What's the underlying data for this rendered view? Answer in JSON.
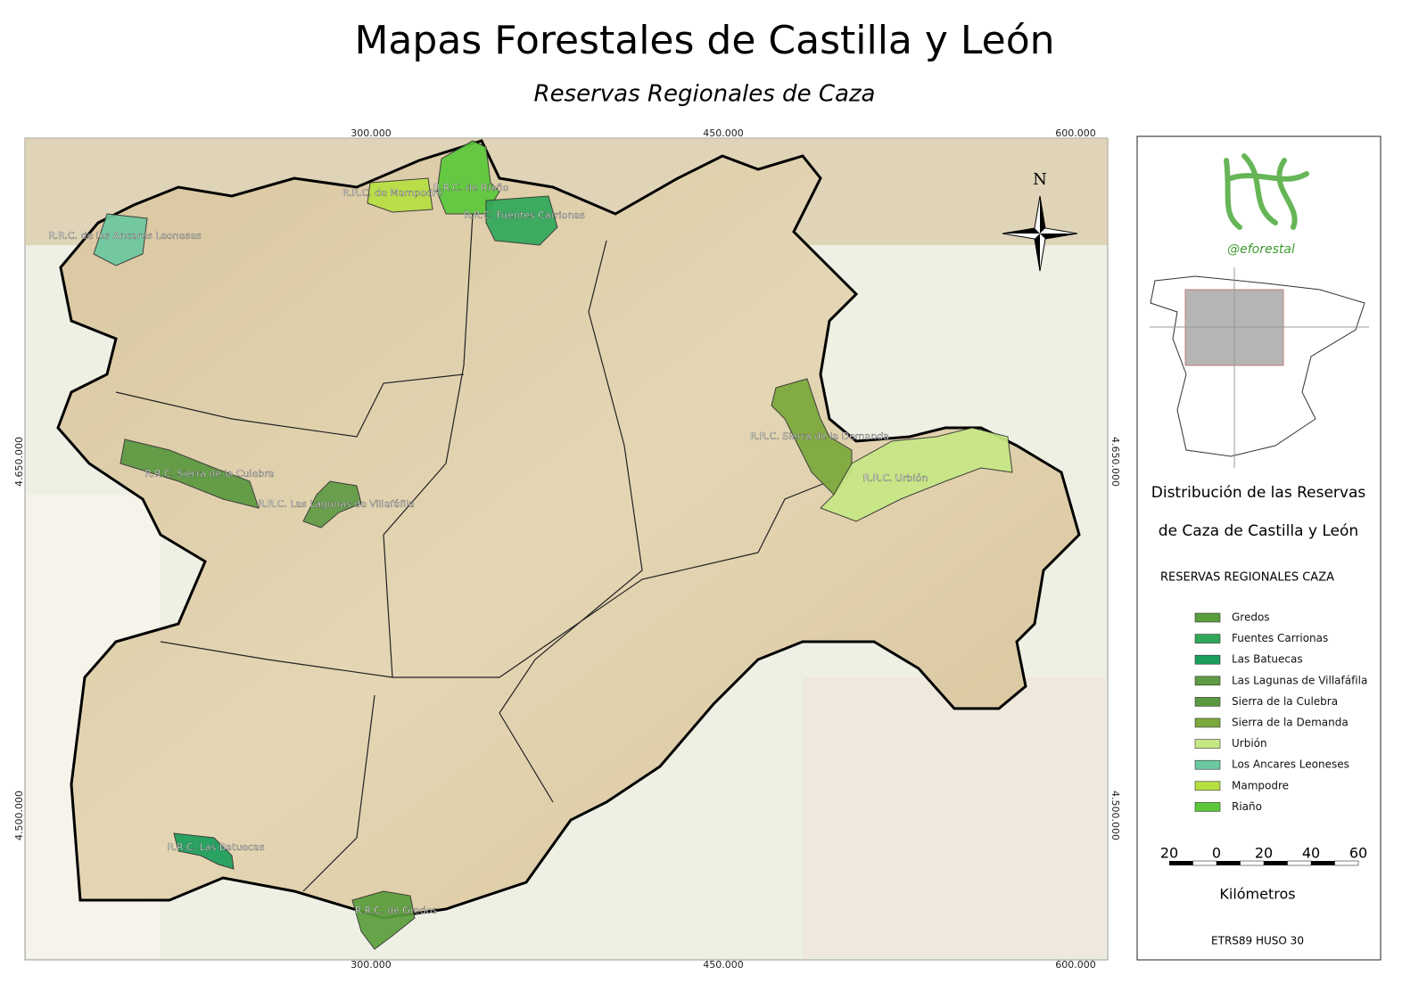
{
  "header": {
    "title": "Mapas Forestales de Castilla y León",
    "subtitle": "Reservas Regionales de Caza"
  },
  "map": {
    "coordinates": {
      "top": [
        "300.000",
        "450.000",
        "600.000"
      ],
      "bottom": [
        "300.000",
        "450.000",
        "600.000"
      ],
      "left": [
        "4.650.000",
        "4.500.000"
      ],
      "right": [
        "4.650.000",
        "4.500.000"
      ]
    },
    "labels": [
      "R.R.C. de Mampodre",
      "R.R.C. de Riaño",
      "R.R.C. Fuentes Carrionas",
      "R.R.C. de los Ancares Leoneses",
      "R.R.C. Sierra de la Culebra",
      "R.R.C. Las Lagunas de Villafáfila",
      "R.R.C. Sierra de la Demanda",
      "R.R.C. Urbión",
      "R.R.C. Las Batuecas",
      "R.R.C. de Gredos"
    ],
    "north": "N"
  },
  "panel": {
    "brand": "@eforestal",
    "heading": [
      "Distribución de las Reservas",
      "de Caza de Castilla y León"
    ],
    "legend": {
      "title": "RESERVAS REGIONALES CAZA",
      "items": [
        {
          "name": "Gredos",
          "color": "#5a9e3c"
        },
        {
          "name": "Fuentes Carrionas",
          "color": "#2fa85a"
        },
        {
          "name": "Las Batuecas",
          "color": "#1a9e5c"
        },
        {
          "name": "Las Lagunas de Villafáfila",
          "color": "#5f9a44"
        },
        {
          "name": "Sierra de la Culebra",
          "color": "#5a9840"
        },
        {
          "name": "Sierra de la Demanda",
          "color": "#7aa83a"
        },
        {
          "name": "Urbión",
          "color": "#c6e884"
        },
        {
          "name": "Los Ancares Leoneses",
          "color": "#6cc8a0"
        },
        {
          "name": "Mampodre",
          "color": "#b6e042"
        },
        {
          "name": "Riaño",
          "color": "#5ac83a"
        }
      ]
    },
    "scale_bar": {
      "ticks": [
        "20",
        "0",
        "20",
        "40",
        "60"
      ],
      "unit": "Kilómetros"
    },
    "crs": "ETRS89 HUSO 30"
  }
}
